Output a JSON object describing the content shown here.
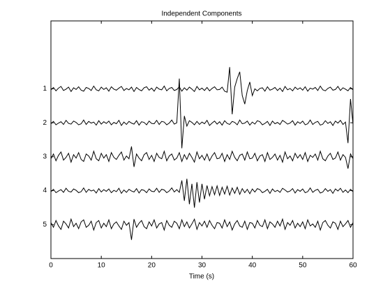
{
  "chart_data": {
    "type": "line",
    "title": "Independent Components",
    "x_label": "Time (s)",
    "x": [
      0,
      0.5,
      1,
      1.5,
      2,
      2.5,
      3,
      3.5,
      4,
      4.5,
      5,
      5.5,
      6,
      6.5,
      7,
      7.5,
      8,
      8.5,
      9,
      9.5,
      10,
      10.5,
      11,
      11.5,
      12,
      12.5,
      13,
      13.5,
      14,
      14.5,
      15,
      15.5,
      16,
      16.5,
      17,
      17.5,
      18,
      18.5,
      19,
      19.5,
      20,
      20.5,
      21,
      21.5,
      22,
      22.5,
      23,
      23.5,
      24,
      24.5,
      25,
      25.5,
      26,
      26.5,
      27,
      27.5,
      28,
      28.5,
      29,
      29.5,
      30,
      30.5,
      31,
      31.5,
      32,
      32.5,
      33,
      33.5,
      34,
      34.5,
      35,
      35.5,
      36,
      36.5,
      37,
      37.5,
      38,
      38.5,
      39,
      39.5,
      40,
      40.5,
      41,
      41.5,
      42,
      42.5,
      43,
      43.5,
      44,
      44.5,
      45,
      45.5,
      46,
      46.5,
      47,
      47.5,
      48,
      48.5,
      49,
      49.5,
      50,
      50.5,
      51,
      51.5,
      52,
      52.5,
      53,
      53.5,
      54,
      54.5,
      55,
      55.5,
      56,
      56.5,
      57,
      57.5,
      58,
      58.5,
      59,
      59.5,
      60
    ],
    "series": [
      {
        "color": "#000000",
        "values": [
          1.03,
          0.96,
          1.06,
          0.98,
          0.93,
          1.05,
          1.01,
          0.95,
          1.08,
          0.97,
          1.02,
          0.94,
          1.04,
          1.07,
          0.96,
          0.99,
          1.05,
          0.92,
          1.03,
          1.06,
          0.95,
          1.02,
          0.97,
          1.07,
          0.94,
          1.01,
          1.04,
          0.98,
          0.93,
          1.05,
          0.99,
          1.03,
          0.95,
          1.08,
          0.96,
          1.02,
          1.06,
          0.97,
          0.94,
          1.04,
          0.98,
          1.07,
          0.95,
          1.01,
          1.03,
          0.92,
          1.06,
          0.99,
          0.96,
          1.05,
          1.02,
          0.94,
          1.07,
          0.97,
          1.04,
          0.95,
          1.01,
          1.08,
          0.93,
          1.03,
          0.98,
          1.05,
          0.96,
          1.06,
          0.99,
          0.94,
          1.03,
          1.02,
          0.95,
          1.07,
          1.1,
          0.36,
          1.75,
          0.95,
          0.7,
          0.5,
          1.2,
          1.45,
          1.05,
          0.8,
          1.2,
          1.0,
          1.06,
          0.99,
          0.97,
          1.07,
          0.94,
          1.04,
          1.01,
          0.96,
          1.05,
          0.98,
          1.08,
          0.93,
          1.03,
          0.99,
          1.06,
          0.95,
          1.02,
          0.97,
          1.04,
          0.94,
          1.07,
          0.98,
          1.01,
          0.96,
          1.05,
          0.92,
          1.03,
          1.06,
          0.99,
          0.95,
          1.04,
          1.02,
          0.93,
          1.05,
          0.97,
          1.01,
          1.06,
          0.96,
          1.03
        ]
      },
      {
        "color": "#000000",
        "values": [
          2.03,
          1.96,
          2.06,
          2.01,
          1.97,
          2.05,
          1.93,
          2.02,
          2.04,
          1.95,
          1.99,
          2.06,
          2.03,
          1.92,
          2.05,
          1.96,
          2.01,
          1.98,
          2.07,
          1.94,
          2.04,
          1.97,
          2.02,
          1.95,
          2.06,
          1.99,
          2.03,
          1.93,
          2.08,
          1.98,
          2.05,
          1.96,
          2.01,
          2.04,
          1.94,
          2.07,
          1.97,
          1.99,
          2.06,
          1.95,
          2.02,
          2.03,
          1.93,
          2.05,
          1.96,
          1.98,
          2.06,
          2.01,
          1.92,
          2.04,
          2.0,
          0.7,
          2.75,
          1.8,
          2.1,
          1.94,
          1.99,
          2.06,
          1.96,
          2.05,
          1.98,
          2.03,
          1.93,
          2.08,
          2.01,
          1.95,
          2.04,
          1.97,
          2.07,
          1.94,
          2.02,
          2.05,
          1.96,
          1.99,
          2.06,
          1.92,
          2.03,
          2.01,
          1.95,
          2.07,
          1.98,
          2.04,
          1.94,
          1.97,
          2.06,
          2.02,
          1.96,
          2.08,
          1.95,
          2.03,
          1.99,
          2.05,
          1.93,
          1.98,
          2.04,
          2.01,
          1.94,
          2.07,
          1.97,
          2.02,
          1.95,
          2.06,
          2.03,
          1.92,
          2.05,
          1.99,
          1.96,
          2.07,
          2.04,
          1.94,
          2.02,
          1.97,
          2.08,
          1.95,
          2.01,
          1.93,
          2.05,
          1.98,
          2.6,
          1.3,
          2.05
        ]
      },
      {
        "color": "#000000",
        "values": [
          3.06,
          2.92,
          3.12,
          2.96,
          2.86,
          3.1,
          3.02,
          2.9,
          3.16,
          2.94,
          3.04,
          2.88,
          3.08,
          3.14,
          2.92,
          2.98,
          3.1,
          2.84,
          3.06,
          3.12,
          2.9,
          3.04,
          2.94,
          3.14,
          2.88,
          3.02,
          3.08,
          2.96,
          2.86,
          3.1,
          2.98,
          3.06,
          2.7,
          3.3,
          2.92,
          3.04,
          3.12,
          2.94,
          2.88,
          3.08,
          2.96,
          3.14,
          2.9,
          3.02,
          3.06,
          2.84,
          3.12,
          2.98,
          2.92,
          3.1,
          3.04,
          2.88,
          3.14,
          2.94,
          3.08,
          2.9,
          3.02,
          3.16,
          2.86,
          3.06,
          2.96,
          3.1,
          2.92,
          3.12,
          2.98,
          2.88,
          3.06,
          3.04,
          2.9,
          3.14,
          2.94,
          3.08,
          2.84,
          3.02,
          3.12,
          2.96,
          2.92,
          3.1,
          2.86,
          3.06,
          3.04,
          2.9,
          3.12,
          2.98,
          2.94,
          3.14,
          2.88,
          3.08,
          3.02,
          2.92,
          3.1,
          2.96,
          3.16,
          2.86,
          3.06,
          2.98,
          3.12,
          2.9,
          3.04,
          2.94,
          3.08,
          2.88,
          3.14,
          2.96,
          3.02,
          2.92,
          3.1,
          2.84,
          3.06,
          3.12,
          2.98,
          2.9,
          3.08,
          3.04,
          2.86,
          3.1,
          2.94,
          3.02,
          3.35,
          2.92,
          3.06
        ]
      },
      {
        "color": "#000000",
        "values": [
          4.03,
          3.96,
          4.06,
          4.01,
          3.97,
          4.05,
          3.93,
          4.02,
          4.04,
          3.95,
          3.99,
          4.06,
          4.03,
          3.92,
          4.05,
          3.96,
          4.01,
          3.98,
          4.07,
          3.94,
          4.04,
          3.97,
          4.02,
          3.95,
          4.06,
          3.99,
          4.03,
          3.93,
          4.08,
          3.98,
          4.05,
          3.96,
          4.01,
          4.04,
          3.94,
          4.07,
          3.97,
          3.99,
          4.06,
          3.95,
          4.02,
          4.03,
          3.93,
          4.05,
          3.96,
          3.98,
          4.06,
          4.01,
          3.92,
          4.04,
          3.97,
          4.05,
          3.7,
          4.3,
          3.65,
          4.4,
          3.8,
          4.5,
          3.75,
          4.35,
          3.8,
          4.25,
          3.85,
          4.15,
          3.88,
          4.12,
          3.86,
          4.14,
          3.9,
          4.1,
          3.87,
          4.13,
          3.92,
          4.08,
          3.9,
          4.11,
          3.94,
          4.06,
          3.96,
          4.09,
          3.95,
          4.04,
          3.94,
          3.97,
          4.06,
          4.02,
          3.96,
          4.08,
          3.95,
          4.03,
          3.99,
          4.05,
          3.93,
          3.98,
          4.04,
          4.01,
          3.94,
          4.07,
          3.97,
          4.02,
          3.95,
          4.06,
          4.03,
          3.92,
          4.05,
          3.99,
          3.96,
          4.07,
          4.04,
          3.94,
          4.02,
          3.97,
          4.08,
          3.95,
          4.01,
          3.93,
          4.05,
          3.98,
          4.06,
          3.96,
          4.03
        ]
      },
      {
        "color": "#000000",
        "values": [
          4.94,
          5.08,
          4.88,
          5.04,
          5.14,
          4.9,
          4.98,
          5.1,
          4.84,
          5.06,
          4.96,
          5.12,
          4.92,
          4.86,
          5.08,
          5.02,
          4.9,
          5.16,
          4.94,
          4.88,
          5.1,
          4.96,
          5.06,
          4.86,
          5.12,
          4.98,
          4.92,
          5.04,
          5.14,
          4.9,
          5.02,
          4.94,
          5.45,
          4.84,
          5.08,
          4.96,
          4.88,
          5.06,
          5.12,
          4.92,
          5.04,
          4.86,
          5.1,
          4.98,
          4.94,
          5.16,
          4.88,
          5.02,
          5.08,
          4.9,
          4.96,
          5.12,
          4.86,
          5.06,
          4.92,
          5.1,
          4.98,
          4.84,
          5.14,
          4.94,
          5.04,
          4.9,
          5.08,
          4.88,
          5.02,
          5.12,
          4.94,
          4.96,
          5.1,
          4.86,
          5.06,
          4.92,
          5.16,
          4.98,
          4.88,
          5.04,
          5.08,
          4.9,
          5.14,
          4.94,
          4.96,
          5.1,
          4.88,
          5.02,
          5.06,
          4.86,
          5.12,
          4.92,
          4.98,
          5.08,
          4.9,
          5.04,
          4.84,
          5.14,
          4.94,
          5.02,
          4.88,
          5.1,
          4.96,
          5.06,
          4.92,
          5.12,
          4.86,
          5.04,
          4.98,
          5.08,
          4.9,
          5.16,
          4.94,
          4.88,
          5.02,
          5.1,
          4.92,
          4.96,
          5.14,
          4.9,
          5.06,
          4.98,
          4.88,
          5.08,
          4.94
        ]
      }
    ],
    "xlim": [
      0,
      60
    ],
    "xticks": [
      0,
      10,
      20,
      30,
      40,
      50,
      60
    ],
    "ylim": [
      -1,
      6
    ],
    "y_reversed": true,
    "yticks": [
      1,
      2,
      3,
      4,
      5
    ],
    "grid": false
  }
}
